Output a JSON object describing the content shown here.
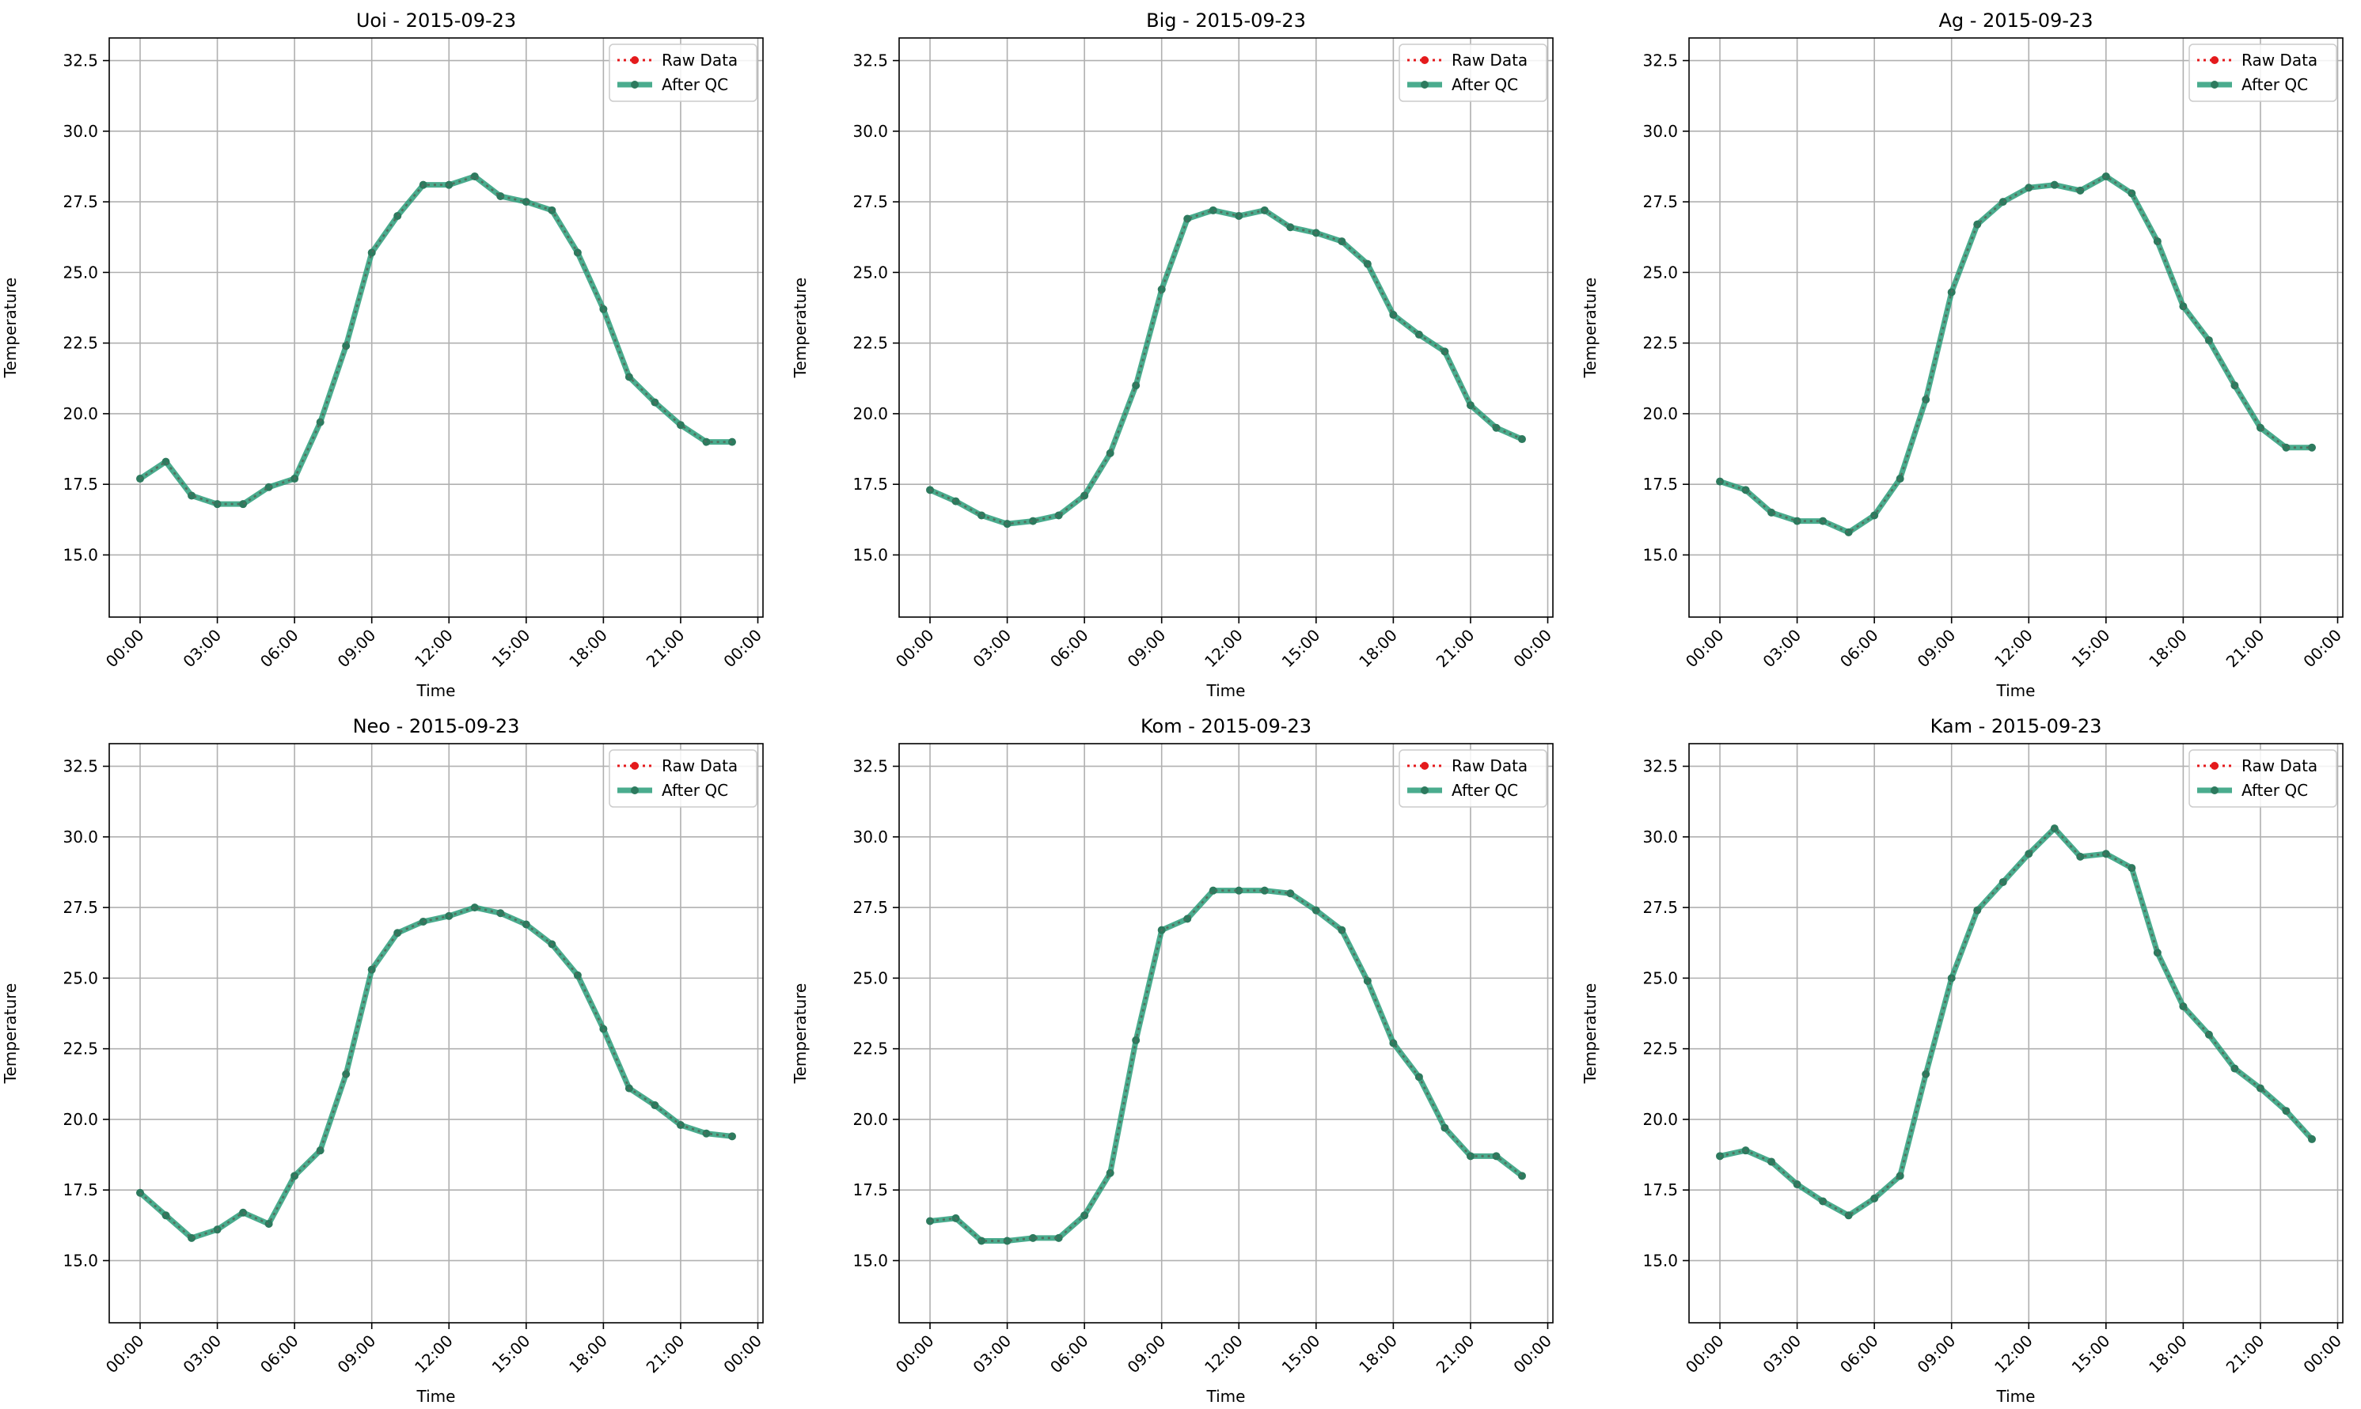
{
  "figure": {
    "x_tick_labels": [
      "00:00",
      "03:00",
      "06:00",
      "09:00",
      "12:00",
      "15:00",
      "18:00",
      "21:00",
      "00:00"
    ],
    "y_tick_labels": [
      "15.0",
      "17.5",
      "20.0",
      "22.5",
      "25.0",
      "27.5",
      "30.0",
      "32.5"
    ],
    "colors": {
      "raw": "#e41a1c",
      "qc": "#2a9d7a",
      "grid": "#b0b0b0"
    }
  },
  "chart_data": [
    {
      "type": "line",
      "title": "Uoi - 2015-09-23",
      "xlabel": "Time",
      "ylabel": "Temperature",
      "x_unit": "hour",
      "xlim": [
        -1.2,
        24.2
      ],
      "ylim": [
        12.8,
        33.3
      ],
      "grid": true,
      "legend_position": "top-right",
      "legend": [
        "Raw Data",
        "After QC"
      ],
      "x": [
        0,
        1,
        2,
        3,
        4,
        5,
        6,
        7,
        8,
        9,
        10,
        11,
        12,
        13,
        14,
        15,
        16,
        17,
        18,
        19,
        20,
        21,
        22,
        23
      ],
      "series": [
        {
          "name": "Raw Data",
          "values": [
            17.7,
            18.3,
            17.1,
            16.8,
            16.8,
            17.4,
            17.7,
            19.7,
            22.4,
            25.7,
            27.0,
            28.1,
            28.1,
            28.4,
            27.7,
            27.5,
            27.2,
            25.7,
            23.7,
            21.3,
            20.4,
            19.6,
            19.0,
            19.0
          ]
        },
        {
          "name": "After QC",
          "values": [
            17.7,
            18.3,
            17.1,
            16.8,
            16.8,
            17.4,
            17.7,
            19.7,
            22.4,
            25.7,
            27.0,
            28.1,
            28.1,
            28.4,
            27.7,
            27.5,
            27.2,
            25.7,
            23.7,
            21.3,
            20.4,
            19.6,
            19.0,
            19.0
          ]
        }
      ]
    },
    {
      "type": "line",
      "title": "Big - 2015-09-23",
      "xlabel": "Time",
      "ylabel": "Temperature",
      "x_unit": "hour",
      "xlim": [
        -1.2,
        24.2
      ],
      "ylim": [
        12.8,
        33.3
      ],
      "grid": true,
      "legend_position": "top-right",
      "legend": [
        "Raw Data",
        "After QC"
      ],
      "x": [
        0,
        1,
        2,
        3,
        4,
        5,
        6,
        7,
        8,
        9,
        10,
        11,
        12,
        13,
        14,
        15,
        16,
        17,
        18,
        19,
        20,
        21,
        22,
        23
      ],
      "series": [
        {
          "name": "Raw Data",
          "values": [
            17.3,
            16.9,
            16.4,
            16.1,
            16.2,
            16.4,
            17.1,
            18.6,
            21.0,
            24.4,
            26.9,
            27.2,
            27.0,
            27.2,
            26.6,
            26.4,
            26.1,
            25.3,
            23.5,
            22.8,
            22.2,
            20.3,
            19.5,
            19.1
          ]
        },
        {
          "name": "After QC",
          "values": [
            17.3,
            16.9,
            16.4,
            16.1,
            16.2,
            16.4,
            17.1,
            18.6,
            21.0,
            24.4,
            26.9,
            27.2,
            27.0,
            27.2,
            26.6,
            26.4,
            26.1,
            25.3,
            23.5,
            22.8,
            22.2,
            20.3,
            19.5,
            19.1
          ]
        }
      ]
    },
    {
      "type": "line",
      "title": "Ag - 2015-09-23",
      "xlabel": "Time",
      "ylabel": "Temperature",
      "x_unit": "hour",
      "xlim": [
        -1.2,
        24.2
      ],
      "ylim": [
        12.8,
        33.3
      ],
      "grid": true,
      "legend_position": "top-right",
      "legend": [
        "Raw Data",
        "After QC"
      ],
      "x": [
        0,
        1,
        2,
        3,
        4,
        5,
        6,
        7,
        8,
        9,
        10,
        11,
        12,
        13,
        14,
        15,
        16,
        17,
        18,
        19,
        20,
        21,
        22,
        23
      ],
      "series": [
        {
          "name": "Raw Data",
          "values": [
            17.6,
            17.3,
            16.5,
            16.2,
            16.2,
            15.8,
            16.4,
            17.7,
            20.5,
            24.3,
            26.7,
            27.5,
            28.0,
            28.1,
            27.9,
            28.4,
            27.8,
            26.1,
            23.8,
            22.6,
            21.0,
            19.5,
            18.8,
            18.8
          ]
        },
        {
          "name": "After QC",
          "values": [
            17.6,
            17.3,
            16.5,
            16.2,
            16.2,
            15.8,
            16.4,
            17.7,
            20.5,
            24.3,
            26.7,
            27.5,
            28.0,
            28.1,
            27.9,
            28.4,
            27.8,
            26.1,
            23.8,
            22.6,
            21.0,
            19.5,
            18.8,
            18.8
          ]
        }
      ]
    },
    {
      "type": "line",
      "title": "Neo - 2015-09-23",
      "xlabel": "Time",
      "ylabel": "Temperature",
      "x_unit": "hour",
      "xlim": [
        -1.2,
        24.2
      ],
      "ylim": [
        12.8,
        33.3
      ],
      "grid": true,
      "legend_position": "top-right",
      "legend": [
        "Raw Data",
        "After QC"
      ],
      "x": [
        0,
        1,
        2,
        3,
        4,
        5,
        6,
        7,
        8,
        9,
        10,
        11,
        12,
        13,
        14,
        15,
        16,
        17,
        18,
        19,
        20,
        21,
        22,
        23
      ],
      "series": [
        {
          "name": "Raw Data",
          "values": [
            17.4,
            16.6,
            15.8,
            16.1,
            16.7,
            16.3,
            18.0,
            18.9,
            21.6,
            25.3,
            26.6,
            27.0,
            27.2,
            27.5,
            27.3,
            26.9,
            26.2,
            25.1,
            23.2,
            21.1,
            20.5,
            19.8,
            19.5,
            19.4
          ]
        },
        {
          "name": "After QC",
          "values": [
            17.4,
            16.6,
            15.8,
            16.1,
            16.7,
            16.3,
            18.0,
            18.9,
            21.6,
            25.3,
            26.6,
            27.0,
            27.2,
            27.5,
            27.3,
            26.9,
            26.2,
            25.1,
            23.2,
            21.1,
            20.5,
            19.8,
            19.5,
            19.4
          ]
        }
      ]
    },
    {
      "type": "line",
      "title": "Kom - 2015-09-23",
      "xlabel": "Time",
      "ylabel": "Temperature",
      "x_unit": "hour",
      "xlim": [
        -1.2,
        24.2
      ],
      "ylim": [
        12.8,
        33.3
      ],
      "grid": true,
      "legend_position": "top-right",
      "legend": [
        "Raw Data",
        "After QC"
      ],
      "x": [
        0,
        1,
        2,
        3,
        4,
        5,
        6,
        7,
        8,
        9,
        10,
        11,
        12,
        13,
        14,
        15,
        16,
        17,
        18,
        19,
        20,
        21,
        22,
        23
      ],
      "series": [
        {
          "name": "Raw Data",
          "values": [
            16.4,
            16.5,
            15.7,
            15.7,
            15.8,
            15.8,
            16.6,
            18.1,
            22.8,
            26.7,
            27.1,
            28.1,
            28.1,
            28.1,
            28.0,
            27.4,
            26.7,
            24.9,
            22.7,
            21.5,
            19.7,
            18.7,
            18.7,
            18.0
          ]
        },
        {
          "name": "After QC",
          "values": [
            16.4,
            16.5,
            15.7,
            15.7,
            15.8,
            15.8,
            16.6,
            18.1,
            22.8,
            26.7,
            27.1,
            28.1,
            28.1,
            28.1,
            28.0,
            27.4,
            26.7,
            24.9,
            22.7,
            21.5,
            19.7,
            18.7,
            18.7,
            18.0
          ]
        }
      ]
    },
    {
      "type": "line",
      "title": "Kam - 2015-09-23",
      "xlabel": "Time",
      "ylabel": "Temperature",
      "x_unit": "hour",
      "xlim": [
        -1.2,
        24.2
      ],
      "ylim": [
        12.8,
        33.3
      ],
      "grid": true,
      "legend_position": "top-right",
      "legend": [
        "Raw Data",
        "After QC"
      ],
      "x": [
        0,
        1,
        2,
        3,
        4,
        5,
        6,
        7,
        8,
        9,
        10,
        11,
        12,
        13,
        14,
        15,
        16,
        17,
        18,
        19,
        20,
        21,
        22,
        23
      ],
      "series": [
        {
          "name": "Raw Data",
          "values": [
            18.7,
            18.9,
            18.5,
            17.7,
            17.1,
            16.6,
            17.2,
            18.0,
            21.6,
            25.0,
            27.4,
            28.4,
            29.4,
            30.3,
            29.3,
            29.4,
            28.9,
            25.9,
            24.0,
            23.0,
            21.8,
            21.1,
            20.3,
            19.3
          ]
        },
        {
          "name": "After QC",
          "values": [
            18.7,
            18.9,
            18.5,
            17.7,
            17.1,
            16.6,
            17.2,
            18.0,
            21.6,
            25.0,
            27.4,
            28.4,
            29.4,
            30.3,
            29.3,
            29.4,
            28.9,
            25.9,
            24.0,
            23.0,
            21.8,
            21.1,
            20.3,
            19.3
          ]
        }
      ]
    }
  ]
}
